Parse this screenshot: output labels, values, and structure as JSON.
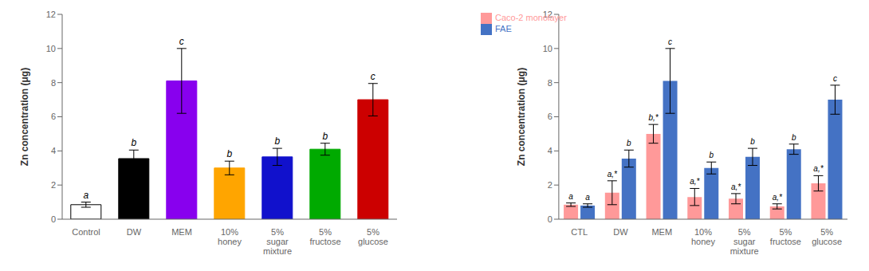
{
  "chart_data": [
    {
      "type": "bar",
      "categories": [
        "Control",
        "DW",
        "MEM",
        "10%\nhoney",
        "5%\nsugar\nmixture",
        "5%\nfructose",
        "5%\nglucose"
      ],
      "values": [
        0.85,
        3.55,
        8.1,
        3.0,
        3.65,
        4.1,
        7.0
      ],
      "errors": [
        0.15,
        0.5,
        1.9,
        0.4,
        0.5,
        0.35,
        0.95
      ],
      "annotations": [
        "a",
        "b",
        "c",
        "b",
        "b",
        "b",
        "c"
      ],
      "colors": [
        "white",
        "black",
        "#8800EE",
        "#FFA500",
        "#1111CC",
        "#00AA00",
        "#CC0000"
      ],
      "ylabel": "Zn concentration (μg)",
      "ylim": [
        0,
        12
      ],
      "yticks": [
        0,
        2,
        4,
        6,
        8,
        10,
        12
      ],
      "grid": false
    },
    {
      "type": "bar",
      "categories": [
        "CTL",
        "DW",
        "MEM",
        "10%\nhoney",
        "5%\nsugar\nmixture",
        "5%\nfructose",
        "5%\nglucose"
      ],
      "series": [
        {
          "name": "Caco-2 monolayer",
          "color": "#FF9999",
          "values": [
            0.85,
            1.55,
            5.0,
            1.3,
            1.2,
            0.75,
            2.1
          ],
          "errors": [
            0.1,
            0.7,
            0.55,
            0.5,
            0.3,
            0.15,
            0.45
          ],
          "annotations": [
            "a",
            "a,*",
            "b,*",
            "a,*",
            "a,*",
            "a,*",
            "a,*"
          ]
        },
        {
          "name": "FAE",
          "color": "#4472C4",
          "values": [
            0.8,
            3.55,
            8.1,
            3.0,
            3.65,
            4.1,
            7.0
          ],
          "errors": [
            0.1,
            0.5,
            1.9,
            0.35,
            0.5,
            0.3,
            0.85
          ],
          "annotations": [
            "a",
            "b",
            "c",
            "b",
            "b",
            "b",
            "c"
          ]
        }
      ],
      "ylabel": "Zn concentration (μg)",
      "ylim": [
        0,
        12
      ],
      "yticks": [
        0,
        2,
        4,
        6,
        8,
        10,
        12
      ],
      "grid": false,
      "legend": "upper left"
    }
  ]
}
